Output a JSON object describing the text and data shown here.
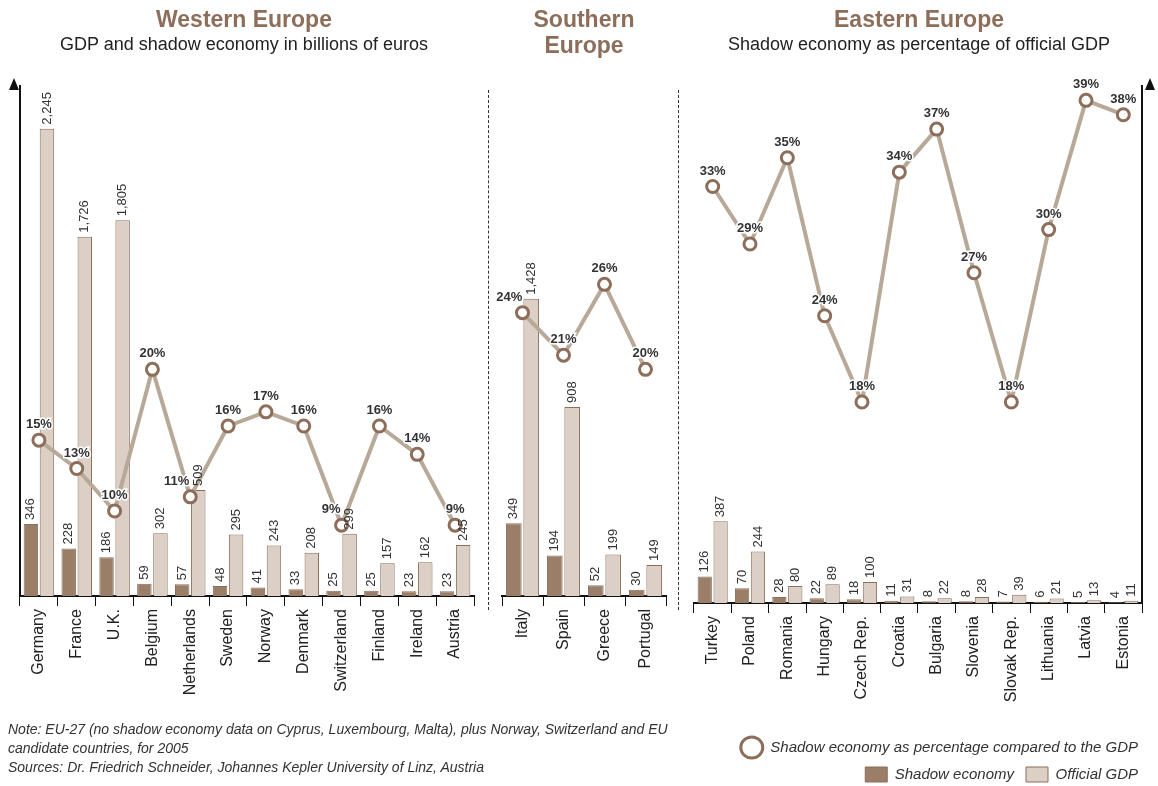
{
  "chart_data": [
    {
      "type": "bar",
      "title": "Western Europe",
      "subtitle": "GDP and shadow economy in billions of euros",
      "categories": [
        "Germany",
        "France",
        "U.K.",
        "Belgium",
        "Netherlands",
        "Sweden",
        "Norway",
        "Denmark",
        "Switzerland",
        "Finland",
        "Ireland",
        "Austria"
      ],
      "series": [
        {
          "color": "#9b7e68",
          "values": [
            346,
            228,
            186,
            59,
            57,
            48,
            41,
            33,
            25,
            25,
            23,
            23
          ],
          "value_labels": [
            "346",
            "228",
            "186",
            "59",
            "57",
            "48",
            "41",
            "33",
            "25",
            "25",
            "23",
            "23"
          ]
        },
        {
          "color": "#dccfc6",
          "values": [
            2245,
            1726,
            1805,
            302,
            509,
            295,
            243,
            208,
            299,
            157,
            162,
            245
          ],
          "value_labels": [
            "2,245",
            "1,726",
            "1,805",
            "302",
            "509",
            "295",
            "243",
            "208",
            "299",
            "157",
            "162",
            "245"
          ]
        },
        {
          "type": "line",
          "axis": "y2",
          "color": "#b8a898",
          "values": [
            15,
            13,
            10,
            20,
            11,
            16,
            17,
            16,
            9,
            16,
            14,
            9
          ],
          "value_labels": [
            "15%",
            "13%",
            "10%",
            "20%",
            "11%",
            "16%",
            "17%",
            "16%",
            "9%",
            "16%",
            "14%",
            "9%"
          ]
        }
      ],
      "ylim": [
        0,
        2450
      ],
      "y2lim": [
        4,
        40
      ],
      "tick_labels": "x",
      "marker": "circle",
      "annotations": [
        "Note: EU-27 (no shadow economy data on Cyprus, Luxembourg, Malta), plus Norway, Switzerland and EU candidate countries, for 2005",
        "Sources: Dr. Friedrich Schneider, Johannes Kepler University of Linz, Austria"
      ]
    },
    {
      "type": "bar",
      "title": "Southern Europe",
      "categories": [
        "Italy",
        "Spain",
        "Greece",
        "Portugal"
      ],
      "series": [
        {
          "color": "#9b7e68",
          "values": [
            349,
            194,
            52,
            30
          ],
          "value_labels": [
            "349",
            "194",
            "52",
            "30"
          ]
        },
        {
          "color": "#dccfc6",
          "values": [
            1428,
            908,
            199,
            149
          ],
          "value_labels": [
            "1,428",
            "908",
            "199",
            "149"
          ]
        },
        {
          "type": "line",
          "axis": "y2",
          "color": "#b8a898",
          "values": [
            24,
            21,
            26,
            20
          ],
          "value_labels": [
            "24%",
            "21%",
            "26%",
            "20%"
          ]
        }
      ],
      "ylim": [
        0,
        2450
      ],
      "y2lim": [
        4,
        40
      ],
      "tick_labels": "x",
      "marker": "circle"
    },
    {
      "type": "bar",
      "title": "Eastern Europe",
      "subtitle": "Shadow economy as percentage of official GDP",
      "categories": [
        "Turkey",
        "Poland",
        "Romania",
        "Hungary",
        "Czech Rep.",
        "Croatia",
        "Bulgaria",
        "Slovenia",
        "Slovak Rep.",
        "Lithuania",
        "Latvia",
        "Estonia"
      ],
      "series": [
        {
          "name": "Shadow economy",
          "color": "#9b7e68",
          "values": [
            126,
            70,
            28,
            22,
            18,
            11,
            8,
            8,
            7,
            6,
            5,
            4
          ],
          "value_labels": [
            "126",
            "70",
            "28",
            "22",
            "18",
            "11",
            "8",
            "8",
            "7",
            "6",
            "5",
            "4"
          ]
        },
        {
          "name": "Official GDP",
          "color": "#dccfc6",
          "values": [
            387,
            244,
            80,
            89,
            100,
            31,
            22,
            28,
            39,
            21,
            13,
            11
          ],
          "value_labels": [
            "387",
            "244",
            "80",
            "89",
            "100",
            "31",
            "22",
            "28",
            "39",
            "21",
            "13",
            "11"
          ]
        },
        {
          "type": "line",
          "axis": "y2",
          "name": "Shadow economy as percentage compared to the GDP",
          "color": "#b8a898",
          "values": [
            33,
            29,
            35,
            24,
            18,
            34,
            37,
            27,
            18,
            30,
            39,
            38
          ],
          "value_labels": [
            "33%",
            "29%",
            "35%",
            "24%",
            "18%",
            "34%",
            "37%",
            "27%",
            "18%",
            "30%",
            "39%",
            "38%"
          ]
        }
      ],
      "ylim": [
        0,
        2450
      ],
      "y2lim": [
        4,
        40
      ],
      "tick_labels": "x",
      "marker": "circle",
      "legend": "bottom right"
    }
  ]
}
